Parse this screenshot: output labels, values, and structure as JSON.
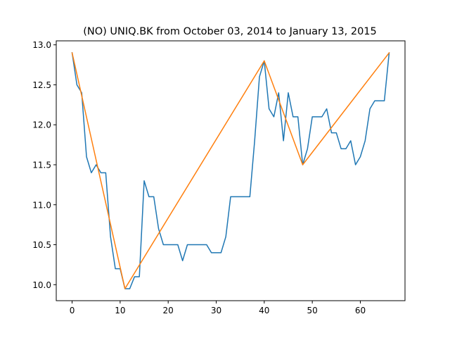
{
  "chart_data": {
    "type": "line",
    "title": "(NO) UNIQ.BK from October 03, 2014 to January 13, 2015",
    "xlabel": "",
    "ylabel": "",
    "xlim": [
      -3.3,
      69.3
    ],
    "ylim": [
      9.8,
      13.05
    ],
    "xticks": [
      0,
      10,
      20,
      30,
      40,
      50,
      60
    ],
    "yticks": [
      10.0,
      10.5,
      11.0,
      11.5,
      12.0,
      12.5,
      13.0
    ],
    "xtick_labels": [
      "0",
      "10",
      "20",
      "30",
      "40",
      "50",
      "60"
    ],
    "ytick_labels": [
      "10.0",
      "10.5",
      "11.0",
      "11.5",
      "12.0",
      "12.5",
      "13.0"
    ],
    "grid": false,
    "legend": "none",
    "series": [
      {
        "color": "#1f77b4",
        "x": [
          0,
          1,
          2,
          3,
          4,
          5,
          6,
          7,
          8,
          9,
          10,
          11,
          12,
          13,
          14,
          15,
          16,
          17,
          18,
          19,
          20,
          21,
          22,
          23,
          24,
          25,
          26,
          27,
          28,
          29,
          30,
          31,
          32,
          33,
          34,
          35,
          36,
          37,
          38,
          39,
          40,
          41,
          42,
          43,
          44,
          45,
          46,
          47,
          48,
          49,
          50,
          51,
          52,
          53,
          54,
          55,
          56,
          57,
          58,
          59,
          60,
          61,
          62,
          63,
          64,
          65,
          66
        ],
        "y": [
          12.9,
          12.5,
          12.4,
          11.6,
          11.4,
          11.5,
          11.4,
          11.4,
          10.6,
          10.2,
          10.2,
          9.95,
          9.95,
          10.1,
          10.1,
          11.3,
          11.1,
          11.1,
          10.7,
          10.5,
          10.5,
          10.5,
          10.5,
          10.3,
          10.5,
          10.5,
          10.5,
          10.5,
          10.5,
          10.4,
          10.4,
          10.4,
          10.6,
          11.1,
          11.1,
          11.1,
          11.1,
          11.1,
          11.8,
          12.6,
          12.8,
          12.2,
          12.1,
          12.4,
          11.8,
          12.4,
          12.1,
          12.1,
          11.5,
          11.7,
          12.1,
          12.1,
          12.1,
          12.2,
          11.9,
          11.9,
          11.7,
          11.7,
          11.8,
          11.5,
          11.6,
          11.8,
          12.2,
          12.3,
          12.3,
          12.3,
          12.9
        ]
      },
      {
        "color": "#ff7f0e",
        "x": [
          0,
          11,
          40,
          48,
          66
        ],
        "y": [
          12.9,
          9.95,
          12.8,
          11.5,
          12.9
        ]
      }
    ]
  }
}
